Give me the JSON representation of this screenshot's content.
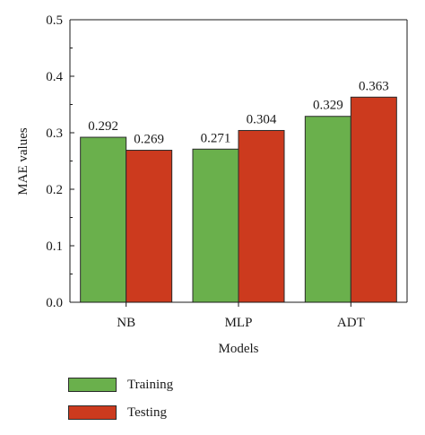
{
  "chart_data": {
    "type": "bar",
    "categories": [
      "NB",
      "MLP",
      "ADT"
    ],
    "series": [
      {
        "name": "Training",
        "values": [
          0.292,
          0.271,
          0.329
        ],
        "color": "#6ab04c"
      },
      {
        "name": "Testing",
        "values": [
          0.269,
          0.304,
          0.363
        ],
        "color": "#cc3a1e"
      }
    ],
    "data_labels": [
      [
        "0.292",
        "0.269"
      ],
      [
        "0.271",
        "0.304"
      ],
      [
        "0.329",
        "0.363"
      ]
    ],
    "xlabel": "Models",
    "ylabel": "MAE values",
    "ylim": [
      0.0,
      0.5
    ],
    "yticks": [
      "0.0",
      "0.1",
      "0.2",
      "0.3",
      "0.4",
      "0.5"
    ],
    "grid": false,
    "legend_position": "bottom-left"
  }
}
